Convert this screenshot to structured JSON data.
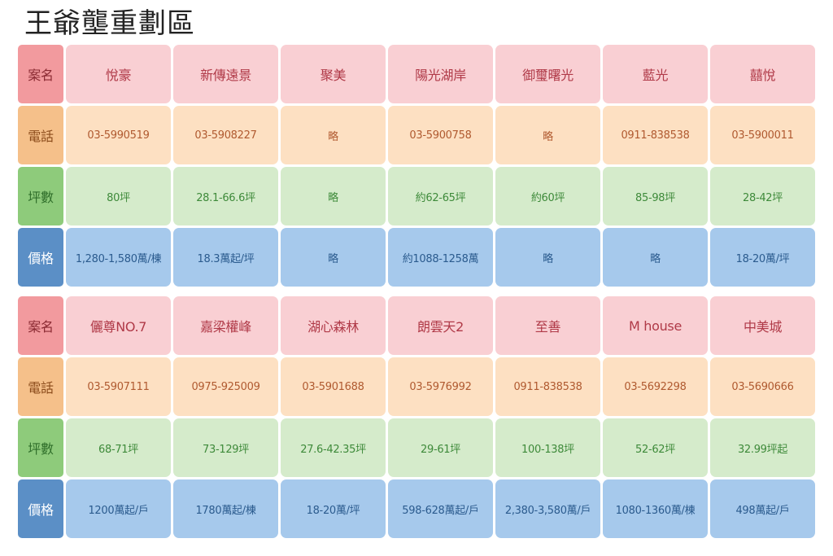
{
  "title": "王爺壟重劃區",
  "labels": {
    "name": "案名",
    "phone": "電話",
    "size": "坪數",
    "price": "價格"
  },
  "tables": [
    {
      "names": [
        "悅豪",
        "新傳遠景",
        "聚美",
        "陽光湖岸",
        "御璽曙光",
        "藍光",
        "囍悅"
      ],
      "phones": [
        "03-5990519",
        "03-5908227",
        "略",
        "03-5900758",
        "略",
        "0911-838538",
        "03-5900011"
      ],
      "sizes": [
        "80坪",
        "28.1-66.6坪",
        "略",
        "約62-65坪",
        "約60坪",
        "85-98坪",
        "28-42坪"
      ],
      "prices": [
        "1,280-1,580萬/棟",
        "18.3萬起/坪",
        "略",
        "約1088-1258萬",
        "略",
        "略",
        "18-20萬/坪"
      ]
    },
    {
      "names": [
        "儷尊NO.7",
        "嘉梁權峰",
        "湖心森林",
        "朗雲天2",
        "至善",
        "M house",
        "中美城"
      ],
      "phones": [
        "03-5907111",
        "0975-925009",
        "03-5901688",
        "03-5976992",
        "0911-838538",
        "03-5692298",
        "03-5690666"
      ],
      "sizes": [
        "68-71坪",
        "73-129坪",
        "27.6-42.35坪",
        "29-61坪",
        "100-138坪",
        "52-62坪",
        "32.99坪起"
      ],
      "prices": [
        "1200萬起/戶",
        "1780萬起/棟",
        "18-20萬/坪",
        "598-628萬起/戶",
        "2,380-3,580萬/戶",
        "1080-1360萬/棟",
        "498萬起/戶"
      ]
    }
  ]
}
